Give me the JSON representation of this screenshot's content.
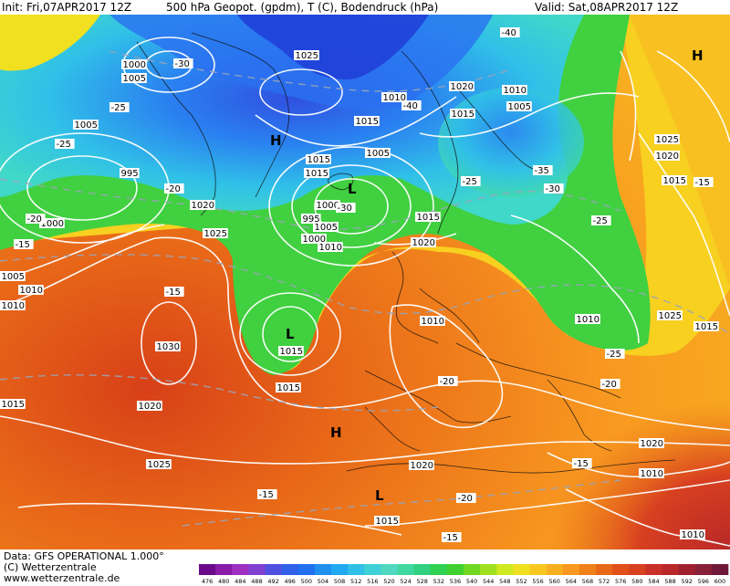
{
  "header": {
    "init": "Init: Fri,07APR2017 12Z",
    "title": "500 hPa Geopot. (gpdm), T (C), Bodendruck (hPa)",
    "valid": "Valid: Sat,08APR2017 12Z"
  },
  "footer": {
    "data_source": "Data: GFS OPERATIONAL 1.000°",
    "copyright": "(C) Wetterzentrale",
    "website": "www.wetterzentrale.de"
  },
  "colorbar": {
    "labels": [
      "476",
      "480",
      "484",
      "488",
      "492",
      "496",
      "500",
      "504",
      "508",
      "512",
      "516",
      "520",
      "524",
      "528",
      "532",
      "536",
      "540",
      "544",
      "548",
      "552",
      "556",
      "560",
      "564",
      "568",
      "572",
      "576",
      "580",
      "584",
      "588",
      "592",
      "596",
      "600"
    ],
    "colors": [
      "#6a0a8a",
      "#8a1aa8",
      "#a030c0",
      "#8040d0",
      "#5050e0",
      "#3060e8",
      "#2070f0",
      "#2090f0",
      "#20a8f0",
      "#30c0e8",
      "#40d0d8",
      "#50d8c0",
      "#40d8a0",
      "#30d080",
      "#30d050",
      "#40d030",
      "#70d820",
      "#a0e020",
      "#d0e820",
      "#f0e020",
      "#f8c820",
      "#f8b020",
      "#f89820",
      "#f08018",
      "#e86818",
      "#e05018",
      "#d84020",
      "#c83028",
      "#b82828",
      "#a02030",
      "#882038",
      "#701838"
    ]
  },
  "map": {
    "pressure_labels": [
      "1000",
      "1005",
      "1005",
      "1025",
      "1020",
      "1010",
      "1015",
      "1005",
      "1010",
      "1015",
      "1025",
      "1020",
      "1015",
      "995",
      "1000",
      "1020",
      "1015",
      "1015",
      "1005",
      "1010",
      "1005",
      "1000",
      "995",
      "1000",
      "1005",
      "1010",
      "1010",
      "1020",
      "1025",
      "1015",
      "1010",
      "1025",
      "1010",
      "1015",
      "1015",
      "1030",
      "1020",
      "1025",
      "1015",
      "1020",
      "1020",
      "1015",
      "1010",
      "1015",
      "1010"
    ],
    "temperature_labels": [
      "-30",
      "-25",
      "-25",
      "-20",
      "-20",
      "-15",
      "-40",
      "-40",
      "-35",
      "-30",
      "-30",
      "-25",
      "-25",
      "-25",
      "-15",
      "-20",
      "-20",
      "-20",
      "-15",
      "-15",
      "-15",
      "-15"
    ],
    "systems": [
      "H",
      "H",
      "L",
      "L",
      "H",
      "L",
      "H"
    ]
  }
}
